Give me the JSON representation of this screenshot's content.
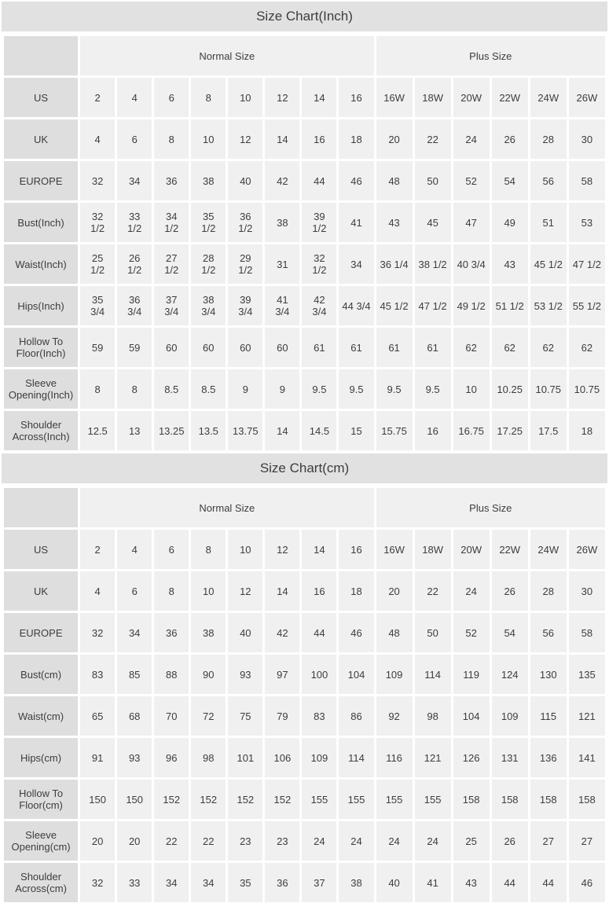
{
  "colors": {
    "title_bar_bg": "#e1e1e1",
    "row_header_bg": "#dedede",
    "data_cell_bg": "#f0f0f0",
    "text": "#3d3d3d"
  },
  "tables": [
    {
      "title": "Size Chart(Inch)",
      "corner_label": "",
      "group_headers": [
        {
          "label": "Normal Size",
          "span": 8
        },
        {
          "label": "Plus Size",
          "span": 6
        }
      ],
      "rows": [
        {
          "header": "US",
          "values": [
            "2",
            "4",
            "6",
            "8",
            "10",
            "12",
            "14",
            "16",
            "16W",
            "18W",
            "20W",
            "22W",
            "24W",
            "26W"
          ]
        },
        {
          "header": "UK",
          "values": [
            "4",
            "6",
            "8",
            "10",
            "12",
            "14",
            "16",
            "18",
            "20",
            "22",
            "24",
            "26",
            "28",
            "30"
          ]
        },
        {
          "header": "EUROPE",
          "values": [
            "32",
            "34",
            "36",
            "38",
            "40",
            "42",
            "44",
            "46",
            "48",
            "50",
            "52",
            "54",
            "56",
            "58"
          ]
        },
        {
          "header": "Bust(Inch)",
          "values": [
            "32\n1/2",
            "33\n1/2",
            "34\n1/2",
            "35\n1/2",
            "36\n1/2",
            "38",
            "39\n1/2",
            "41",
            "43",
            "45",
            "47",
            "49",
            "51",
            "53"
          ]
        },
        {
          "header": "Waist(Inch)",
          "values": [
            "25\n1/2",
            "26\n1/2",
            "27\n1/2",
            "28\n1/2",
            "29\n1/2",
            "31",
            "32\n1/2",
            "34",
            "36 1/4",
            "38 1/2",
            "40 3/4",
            "43",
            "45 1/2",
            "47 1/2"
          ]
        },
        {
          "header": "Hips(Inch)",
          "values": [
            "35\n3/4",
            "36\n3/4",
            "37\n3/4",
            "38\n3/4",
            "39\n3/4",
            "41\n3/4",
            "42\n3/4",
            "44 3/4",
            "45 1/2",
            "47 1/2",
            "49 1/2",
            "51 1/2",
            "53 1/2",
            "55 1/2"
          ]
        },
        {
          "header": "Hollow To\nFloor(Inch)",
          "values": [
            "59",
            "59",
            "60",
            "60",
            "60",
            "60",
            "61",
            "61",
            "61",
            "61",
            "62",
            "62",
            "62",
            "62"
          ]
        },
        {
          "header": "Sleeve\nOpening(Inch)",
          "values": [
            "8",
            "8",
            "8.5",
            "8.5",
            "9",
            "9",
            "9.5",
            "9.5",
            "9.5",
            "9.5",
            "10",
            "10.25",
            "10.75",
            "10.75"
          ]
        },
        {
          "header": "Shoulder\nAcross(Inch)",
          "values": [
            "12.5",
            "13",
            "13.25",
            "13.5",
            "13.75",
            "14",
            "14.5",
            "15",
            "15.75",
            "16",
            "16.75",
            "17.25",
            "17.5",
            "18"
          ]
        }
      ]
    },
    {
      "title": "Size Chart(cm)",
      "corner_label": "",
      "group_headers": [
        {
          "label": "Normal Size",
          "span": 8
        },
        {
          "label": "Plus Size",
          "span": 6
        }
      ],
      "rows": [
        {
          "header": "US",
          "values": [
            "2",
            "4",
            "6",
            "8",
            "10",
            "12",
            "14",
            "16",
            "16W",
            "18W",
            "20W",
            "22W",
            "24W",
            "26W"
          ]
        },
        {
          "header": "UK",
          "values": [
            "4",
            "6",
            "8",
            "10",
            "12",
            "14",
            "16",
            "18",
            "20",
            "22",
            "24",
            "26",
            "28",
            "30"
          ]
        },
        {
          "header": "EUROPE",
          "values": [
            "32",
            "34",
            "36",
            "38",
            "40",
            "42",
            "44",
            "46",
            "48",
            "50",
            "52",
            "54",
            "56",
            "58"
          ]
        },
        {
          "header": "Bust(cm)",
          "values": [
            "83",
            "85",
            "88",
            "90",
            "93",
            "97",
            "100",
            "104",
            "109",
            "114",
            "119",
            "124",
            "130",
            "135"
          ]
        },
        {
          "header": "Waist(cm)",
          "values": [
            "65",
            "68",
            "70",
            "72",
            "75",
            "79",
            "83",
            "86",
            "92",
            "98",
            "104",
            "109",
            "115",
            "121"
          ]
        },
        {
          "header": "Hips(cm)",
          "values": [
            "91",
            "93",
            "96",
            "98",
            "101",
            "106",
            "109",
            "114",
            "116",
            "121",
            "126",
            "131",
            "136",
            "141"
          ]
        },
        {
          "header": "Hollow To\nFloor(cm)",
          "values": [
            "150",
            "150",
            "152",
            "152",
            "152",
            "152",
            "155",
            "155",
            "155",
            "155",
            "158",
            "158",
            "158",
            "158"
          ]
        },
        {
          "header": "Sleeve\nOpening(cm)",
          "values": [
            "20",
            "20",
            "22",
            "22",
            "23",
            "23",
            "24",
            "24",
            "24",
            "24",
            "25",
            "26",
            "27",
            "27"
          ]
        },
        {
          "header": "Shoulder\nAcross(cm)",
          "values": [
            "32",
            "33",
            "34",
            "34",
            "35",
            "36",
            "37",
            "38",
            "40",
            "41",
            "43",
            "44",
            "44",
            "46"
          ]
        }
      ]
    }
  ]
}
